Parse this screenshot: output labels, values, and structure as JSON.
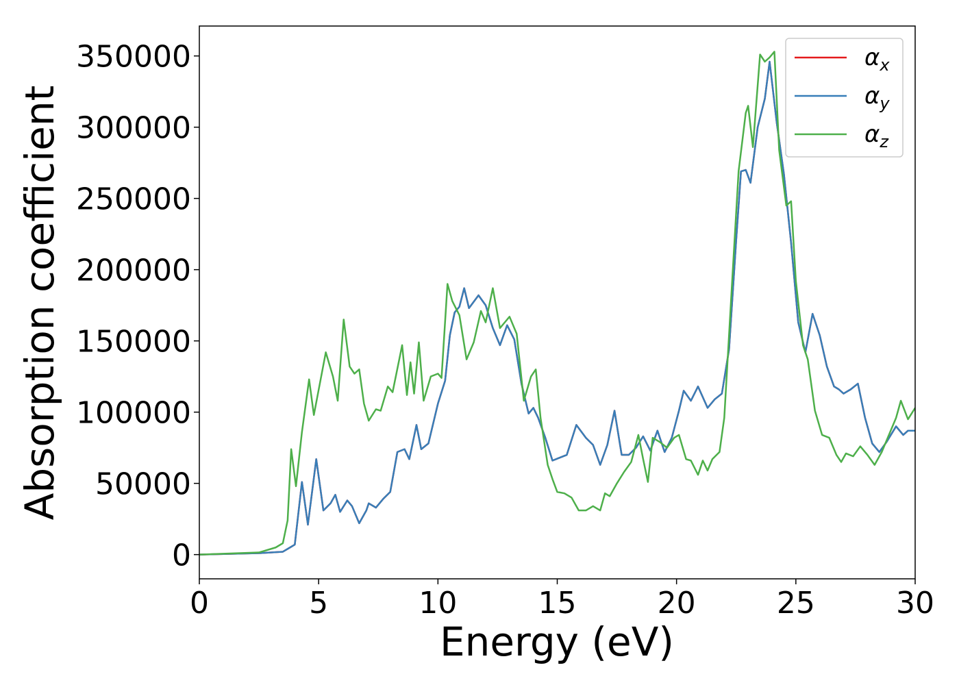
{
  "chart_data": {
    "type": "line",
    "xlabel": "Energy (eV)",
    "ylabel": "Absorption coefficient",
    "xlim": [
      0,
      30
    ],
    "ylim": [
      -17000,
      371000
    ],
    "xticks": [
      0,
      5,
      10,
      15,
      20,
      25,
      30
    ],
    "yticks": [
      0,
      50000,
      100000,
      150000,
      200000,
      250000,
      300000,
      350000
    ],
    "legend": "upper right",
    "series": [
      {
        "name": "αx",
        "color": "#e41a1c",
        "x": [
          0,
          2.5,
          3.5,
          3.8,
          4.0,
          4.3,
          4.55,
          4.9,
          5.2,
          5.5,
          5.7,
          5.9,
          6.2,
          6.4,
          6.7,
          7.0,
          7.1,
          7.4,
          7.7,
          8.0,
          8.3,
          8.6,
          8.8,
          9.1,
          9.3,
          9.6,
          10.0,
          10.3,
          10.5,
          10.7,
          10.9,
          11.1,
          11.3,
          11.7,
          12.0,
          12.3,
          12.6,
          12.9,
          13.2,
          13.5,
          13.8,
          14.0,
          14.2,
          14.5,
          14.8,
          15.1,
          15.4,
          15.8,
          16.2,
          16.5,
          16.8,
          17.1,
          17.4,
          17.7,
          18.0,
          18.3,
          18.6,
          18.9,
          19.2,
          19.5,
          19.8,
          20.1,
          20.3,
          20.6,
          20.9,
          21.3,
          21.6,
          21.9,
          22.2,
          22.5,
          22.7,
          22.9,
          23.1,
          23.4,
          23.7,
          23.9,
          24.2,
          24.5,
          24.8,
          25.1,
          25.4,
          25.7,
          26.0,
          26.3,
          26.6,
          26.8,
          27.0,
          27.3,
          27.6,
          27.9,
          28.2,
          28.5,
          28.8,
          29.2,
          29.5,
          29.7,
          30
        ],
        "values": [
          0,
          1000,
          2000,
          5000,
          7000,
          51000,
          21000,
          67000,
          31000,
          36000,
          42000,
          30000,
          38000,
          34000,
          22000,
          31000,
          36000,
          33000,
          39000,
          44000,
          72000,
          74000,
          67000,
          91000,
          74000,
          78000,
          106000,
          122000,
          154000,
          170000,
          174000,
          187000,
          173000,
          182000,
          175000,
          159000,
          147000,
          161000,
          151000,
          120000,
          99000,
          103000,
          96000,
          82000,
          66000,
          68000,
          70000,
          91000,
          82000,
          77000,
          63000,
          77000,
          101000,
          70000,
          70000,
          75000,
          83000,
          73000,
          87000,
          72000,
          82000,
          101000,
          115000,
          108000,
          118000,
          103000,
          109000,
          113000,
          144000,
          221000,
          269000,
          270000,
          261000,
          300000,
          320000,
          346000,
          303000,
          267000,
          219000,
          163000,
          142000,
          169000,
          154000,
          132000,
          118000,
          116000,
          113000,
          116000,
          120000,
          96000,
          78000,
          72000,
          79000,
          90000,
          84000,
          87000,
          87000
        ]
      },
      {
        "name": "αy",
        "color": "#377eb8",
        "x": [
          0,
          2.5,
          3.5,
          3.8,
          4.0,
          4.3,
          4.55,
          4.9,
          5.2,
          5.5,
          5.7,
          5.9,
          6.2,
          6.4,
          6.7,
          7.0,
          7.1,
          7.4,
          7.7,
          8.0,
          8.3,
          8.6,
          8.8,
          9.1,
          9.3,
          9.6,
          10.0,
          10.3,
          10.5,
          10.7,
          10.9,
          11.1,
          11.3,
          11.7,
          12.0,
          12.3,
          12.6,
          12.9,
          13.2,
          13.5,
          13.8,
          14.0,
          14.2,
          14.5,
          14.8,
          15.1,
          15.4,
          15.8,
          16.2,
          16.5,
          16.8,
          17.1,
          17.4,
          17.7,
          18.0,
          18.3,
          18.6,
          18.9,
          19.2,
          19.5,
          19.8,
          20.1,
          20.3,
          20.6,
          20.9,
          21.3,
          21.6,
          21.9,
          22.2,
          22.5,
          22.7,
          22.9,
          23.1,
          23.4,
          23.7,
          23.9,
          24.2,
          24.5,
          24.8,
          25.1,
          25.4,
          25.7,
          26.0,
          26.3,
          26.6,
          26.8,
          27.0,
          27.3,
          27.6,
          27.9,
          28.2,
          28.5,
          28.8,
          29.2,
          29.5,
          29.7,
          30
        ],
        "values": [
          0,
          1000,
          2000,
          5000,
          7000,
          51000,
          21000,
          67000,
          31000,
          36000,
          42000,
          30000,
          38000,
          34000,
          22000,
          31000,
          36000,
          33000,
          39000,
          44000,
          72000,
          74000,
          67000,
          91000,
          74000,
          78000,
          106000,
          122000,
          154000,
          170000,
          174000,
          187000,
          173000,
          182000,
          175000,
          159000,
          147000,
          161000,
          151000,
          120000,
          99000,
          103000,
          96000,
          82000,
          66000,
          68000,
          70000,
          91000,
          82000,
          77000,
          63000,
          77000,
          101000,
          70000,
          70000,
          75000,
          83000,
          73000,
          87000,
          72000,
          82000,
          101000,
          115000,
          108000,
          118000,
          103000,
          109000,
          113000,
          144000,
          221000,
          269000,
          270000,
          261000,
          300000,
          320000,
          346000,
          303000,
          267000,
          219000,
          163000,
          142000,
          169000,
          154000,
          132000,
          118000,
          116000,
          113000,
          116000,
          120000,
          96000,
          78000,
          72000,
          79000,
          90000,
          84000,
          87000,
          87000
        ]
      },
      {
        "name": "αz",
        "color": "#4daf4a",
        "x": [
          0,
          2.5,
          3.2,
          3.5,
          3.7,
          3.85,
          4.05,
          4.3,
          4.6,
          4.8,
          5.05,
          5.3,
          5.6,
          5.8,
          6.05,
          6.3,
          6.5,
          6.7,
          6.9,
          7.1,
          7.4,
          7.6,
          7.9,
          8.1,
          8.5,
          8.7,
          8.85,
          9.0,
          9.2,
          9.4,
          9.7,
          10.0,
          10.15,
          10.4,
          10.6,
          10.9,
          11.2,
          11.5,
          11.8,
          12.0,
          12.3,
          12.6,
          12.8,
          13.0,
          13.3,
          13.6,
          13.9,
          14.1,
          14.3,
          14.6,
          14.8,
          15.0,
          15.3,
          15.6,
          15.9,
          16.2,
          16.5,
          16.8,
          17.0,
          17.2,
          17.5,
          17.8,
          18.1,
          18.4,
          18.6,
          18.8,
          19.0,
          19.3,
          19.6,
          19.9,
          20.1,
          20.4,
          20.6,
          20.9,
          21.1,
          21.3,
          21.5,
          21.8,
          22.0,
          22.3,
          22.6,
          22.9,
          23.0,
          23.2,
          23.5,
          23.7,
          23.9,
          24.1,
          24.3,
          24.6,
          24.8,
          25.0,
          25.3,
          25.5,
          25.8,
          26.1,
          26.4,
          26.7,
          26.9,
          27.1,
          27.4,
          27.7,
          28.0,
          28.3,
          28.6,
          28.9,
          29.2,
          29.4,
          29.7,
          30
        ],
        "values": [
          0,
          1500,
          5000,
          8000,
          24000,
          74000,
          48000,
          86000,
          123000,
          98000,
          120000,
          142000,
          125000,
          108000,
          165000,
          132000,
          127000,
          130000,
          106000,
          94000,
          102000,
          101000,
          118000,
          114000,
          147000,
          112000,
          135000,
          113000,
          149000,
          108000,
          125000,
          127000,
          124000,
          190000,
          178000,
          168000,
          137000,
          149000,
          171000,
          163000,
          187000,
          159000,
          163000,
          167000,
          155000,
          108000,
          125000,
          130000,
          96000,
          63000,
          53000,
          44000,
          43000,
          40000,
          31000,
          31000,
          34000,
          31000,
          43000,
          41000,
          50000,
          58000,
          65000,
          84000,
          67000,
          51000,
          82000,
          79000,
          75000,
          82000,
          84000,
          67000,
          66000,
          56000,
          66000,
          59000,
          67000,
          72000,
          96000,
          183000,
          269000,
          310000,
          315000,
          286000,
          351000,
          346000,
          349000,
          353000,
          284000,
          245000,
          248000,
          192000,
          147000,
          137000,
          101000,
          84000,
          82000,
          70000,
          65000,
          71000,
          69000,
          76000,
          70000,
          63000,
          72000,
          84000,
          96000,
          108000,
          95000,
          103000
        ]
      }
    ]
  }
}
